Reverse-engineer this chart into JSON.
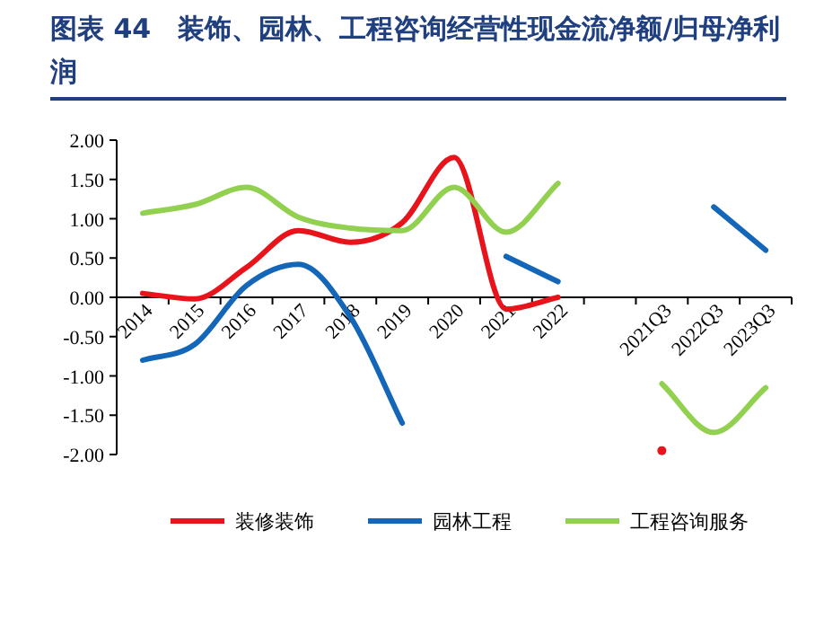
{
  "chart_data": {
    "type": "line",
    "title": "图表 44　装饰、园林、工程咨询经营性现金流净额/归母净利润",
    "categories": [
      "2014",
      "2015",
      "2016",
      "2017",
      "2018",
      "2019",
      "2020",
      "2021",
      "2022",
      null,
      "2021Q3",
      "2022Q3",
      "2023Q3"
    ],
    "series": [
      {
        "name": "装修装饰",
        "color": "#e8141c",
        "values": [
          0.05,
          -0.02,
          0.38,
          0.85,
          0.7,
          0.95,
          1.78,
          -0.15,
          0.0,
          null,
          -1.95,
          null,
          null
        ]
      },
      {
        "name": "园林工程",
        "color": "#1466b8",
        "values": [
          -0.8,
          -0.6,
          0.15,
          0.42,
          -0.25,
          -1.6,
          null,
          0.52,
          0.2,
          null,
          null,
          1.15,
          0.6
        ]
      },
      {
        "name": "工程咨询服务",
        "color": "#92d050",
        "values": [
          1.07,
          1.18,
          1.4,
          1.02,
          0.88,
          0.85,
          1.4,
          0.83,
          1.45,
          null,
          -1.1,
          -1.72,
          -1.15
        ]
      }
    ],
    "ylim": [
      -2,
      2
    ],
    "yticks": [
      {
        "value": -2,
        "label": "-2.00"
      },
      {
        "value": -1.5,
        "label": "-1.50"
      },
      {
        "value": -1,
        "label": "-1.00"
      },
      {
        "value": -0.5,
        "label": "-0.50"
      },
      {
        "value": 0,
        "label": "0.00"
      },
      {
        "value": 0.5,
        "label": "0.50"
      },
      {
        "value": 1,
        "label": "1.00"
      },
      {
        "value": 1.5,
        "label": "1.50"
      },
      {
        "value": 2,
        "label": "2.00"
      }
    ],
    "legend": "bottom",
    "grid": false,
    "line_style": "solid",
    "marker": "none"
  }
}
